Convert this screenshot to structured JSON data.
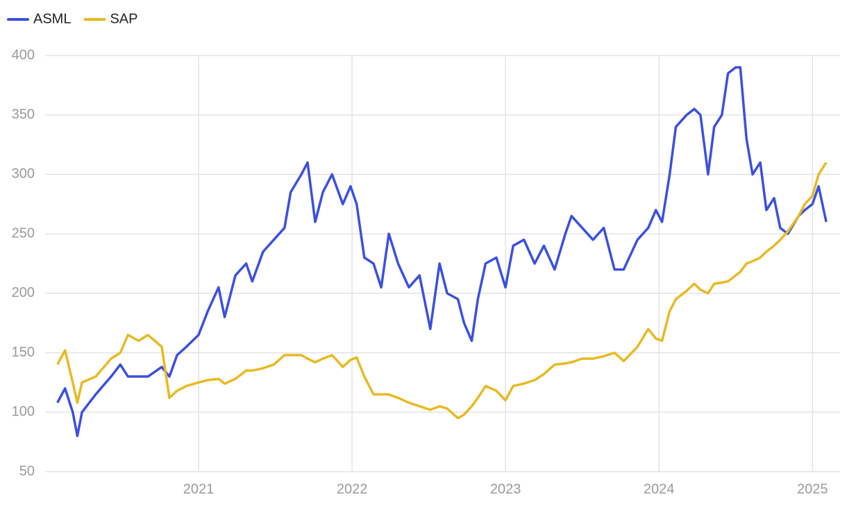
{
  "chart_data": {
    "type": "line",
    "x": [
      2020.08,
      2020.13,
      2020.18,
      2020.21,
      2020.24,
      2020.33,
      2020.43,
      2020.49,
      2020.54,
      2020.61,
      2020.67,
      2020.76,
      2020.81,
      2020.86,
      2020.92,
      2021.0,
      2021.06,
      2021.13,
      2021.17,
      2021.24,
      2021.31,
      2021.35,
      2021.42,
      2021.49,
      2021.56,
      2021.6,
      2021.67,
      2021.71,
      2021.76,
      2021.81,
      2021.87,
      2021.94,
      2021.99,
      2022.03,
      2022.08,
      2022.14,
      2022.19,
      2022.24,
      2022.3,
      2022.37,
      2022.44,
      2022.51,
      2022.57,
      2022.62,
      2022.69,
      2022.73,
      2022.78,
      2022.82,
      2022.87,
      2022.94,
      2023.0,
      2023.05,
      2023.12,
      2023.19,
      2023.25,
      2023.32,
      2023.39,
      2023.43,
      2023.5,
      2023.57,
      2023.64,
      2023.71,
      2023.77,
      2023.86,
      2023.93,
      2023.98,
      2024.02,
      2024.07,
      2024.11,
      2024.18,
      2024.23,
      2024.27,
      2024.32,
      2024.36,
      2024.41,
      2024.45,
      2024.5,
      2024.53,
      2024.57,
      2024.61,
      2024.66,
      2024.7,
      2024.75,
      2024.79,
      2024.84,
      2024.91,
      2024.95,
      2025.0,
      2025.04,
      2025.09
    ],
    "series": [
      {
        "name": "ASML",
        "color": "#3a4fe0",
        "values": [
          108,
          120,
          100,
          80,
          100,
          115,
          130,
          140,
          130,
          130,
          130,
          138,
          130,
          148,
          155,
          165,
          185,
          205,
          180,
          215,
          225,
          210,
          235,
          245,
          255,
          285,
          300,
          310,
          260,
          285,
          300,
          275,
          290,
          275,
          230,
          225,
          205,
          250,
          225,
          205,
          215,
          170,
          225,
          200,
          195,
          175,
          160,
          195,
          225,
          230,
          205,
          240,
          245,
          225,
          240,
          220,
          250,
          265,
          255,
          245,
          255,
          220,
          220,
          245,
          255,
          270,
          260,
          300,
          340,
          350,
          355,
          350,
          300,
          340,
          350,
          385,
          390,
          390,
          330,
          300,
          310,
          270,
          280,
          255,
          250,
          265,
          270,
          275,
          290,
          260
        ]
      },
      {
        "name": "SAP",
        "color": "#e8b922",
        "values": [
          140,
          152,
          125,
          108,
          125,
          130,
          145,
          150,
          165,
          160,
          165,
          155,
          112,
          118,
          122,
          125,
          127,
          128,
          124,
          128,
          135,
          135,
          137,
          140,
          148,
          148,
          148,
          145,
          142,
          145,
          148,
          138,
          144,
          146,
          130,
          115,
          115,
          115,
          112,
          108,
          105,
          102,
          105,
          103,
          95,
          98,
          105,
          112,
          122,
          118,
          110,
          122,
          124,
          127,
          132,
          140,
          141,
          142,
          145,
          145,
          147,
          150,
          143,
          155,
          170,
          162,
          160,
          185,
          195,
          202,
          208,
          203,
          200,
          208,
          209,
          210,
          215,
          218,
          225,
          227,
          230,
          235,
          240,
          245,
          252,
          265,
          275,
          282,
          300,
          310
        ]
      }
    ],
    "xlim": [
      2020.0,
      2025.18
    ],
    "xticks": [
      2021,
      2022,
      2023,
      2024,
      2025
    ],
    "ylim": [
      50,
      400
    ],
    "yticks": [
      50,
      100,
      150,
      200,
      250,
      300,
      350,
      400
    ],
    "grid": true,
    "legend": "top-left"
  }
}
